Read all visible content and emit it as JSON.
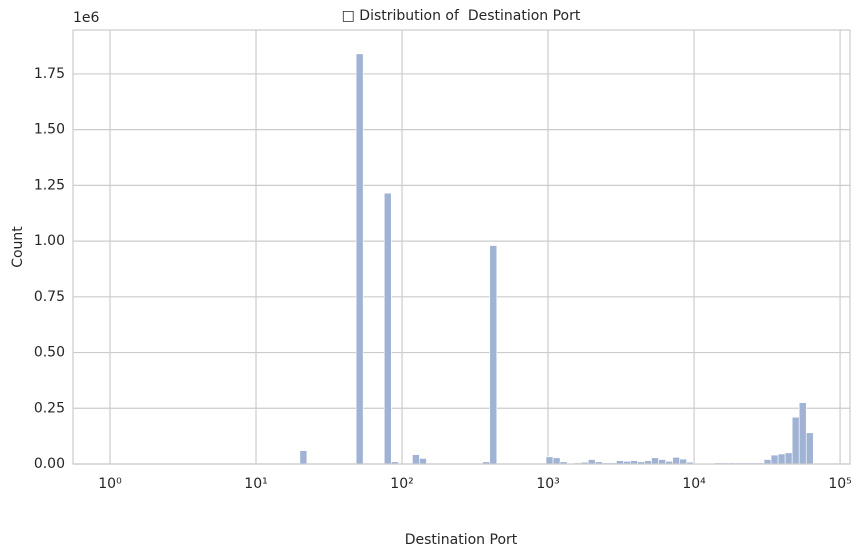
{
  "chart_data": {
    "type": "histogram",
    "title": "□ Distribution of  Destination Port",
    "xlabel": "Destination Port",
    "ylabel": "Count",
    "y_offset_label": "1e6",
    "color": "#a1b3d4",
    "edgecolor": "#ffffff",
    "grid": true,
    "xscale": "log",
    "bins": [
      1,
      1.1173,
      1.2483,
      1.3947,
      1.5583,
      1.741,
      1.9452,
      2.1733,
      2.4282,
      2.713,
      3.0311,
      3.3866,
      3.7838,
      4.2276,
      4.7234,
      5.2773,
      5.8962,
      6.5877,
      7.3603,
      8.2235,
      9.1879,
      10.265,
      11.469,
      12.815,
      14.318,
      15.997,
      17.873,
      19.969,
      22.311,
      24.928,
      27.851,
      31.118,
      34.767,
      38.845,
      43.4,
      48.49,
      54.177,
      60.531,
      67.63,
      75.561,
      84.423,
      94.324,
      105.39,
      117.75,
      131.56,
      146.98,
      164.22,
      183.48,
      205,
      229.04,
      255.9,
      285.91,
      319.44,
      356.91,
      398.77,
      445.53,
      497.78,
      556.16,
      621.39,
      694.26,
      776.05,
      867.07,
      968.77,
      1082.4,
      1209.3,
      1351.2,
      1509.6,
      1686.7,
      1884.5,
      2105.5,
      2352.5,
      2628.4,
      2936.7,
      3281.1,
      3665.9,
      4095.8,
      4576.2,
      5112.9,
      5712.5,
      6382.4,
      7131.6,
      7968,
      8902.5,
      9946.5,
      11113,
      12416,
      13872,
      15499,
      17317,
      19348,
      21617,
      24152,
      26985,
      30150,
      33686,
      37636,
      42050,
      46982,
      52491,
      58647,
      65535
    ],
    "values": [
      0,
      0,
      0,
      0,
      0,
      0,
      0,
      0,
      0,
      0,
      0,
      0,
      0,
      0,
      0,
      0,
      0,
      0,
      0,
      0,
      0,
      0,
      0,
      0,
      0,
      0,
      0,
      60000,
      0,
      0,
      0,
      0,
      0,
      0,
      0,
      1840000,
      0,
      0,
      0,
      1215000,
      10000,
      0,
      0,
      42000,
      25000,
      0,
      0,
      0,
      0,
      0,
      0,
      0,
      0,
      10000,
      980000,
      0,
      0,
      0,
      0,
      0,
      0,
      0,
      32000,
      28000,
      10000,
      3000,
      5000,
      8000,
      20000,
      10000,
      5000,
      5000,
      15000,
      12000,
      15000,
      10000,
      15000,
      28000,
      20000,
      12000,
      30000,
      22000,
      8000,
      3000,
      3000,
      3000,
      5000,
      5000,
      5000,
      5000,
      5000,
      5000,
      5000,
      20000,
      40000,
      45000,
      50000,
      210000,
      275000,
      140000
    ],
    "xlim": [
      0.558,
      116950
    ],
    "ylim": [
      0,
      1947000
    ],
    "xticks": [
      {
        "value": 1,
        "label": "10⁰"
      },
      {
        "value": 10,
        "label": "10¹"
      },
      {
        "value": 100,
        "label": "10²"
      },
      {
        "value": 1000,
        "label": "10³"
      },
      {
        "value": 10000,
        "label": "10⁴"
      },
      {
        "value": 100000,
        "label": "10⁵"
      }
    ],
    "yticks": [
      {
        "value": 0,
        "label": "0.00"
      },
      {
        "value": 250000,
        "label": "0.25"
      },
      {
        "value": 500000,
        "label": "0.50"
      },
      {
        "value": 750000,
        "label": "0.75"
      },
      {
        "value": 1000000,
        "label": "1.00"
      },
      {
        "value": 1250000,
        "label": "1.25"
      },
      {
        "value": 1500000,
        "label": "1.50"
      },
      {
        "value": 1750000,
        "label": "1.75"
      }
    ]
  }
}
